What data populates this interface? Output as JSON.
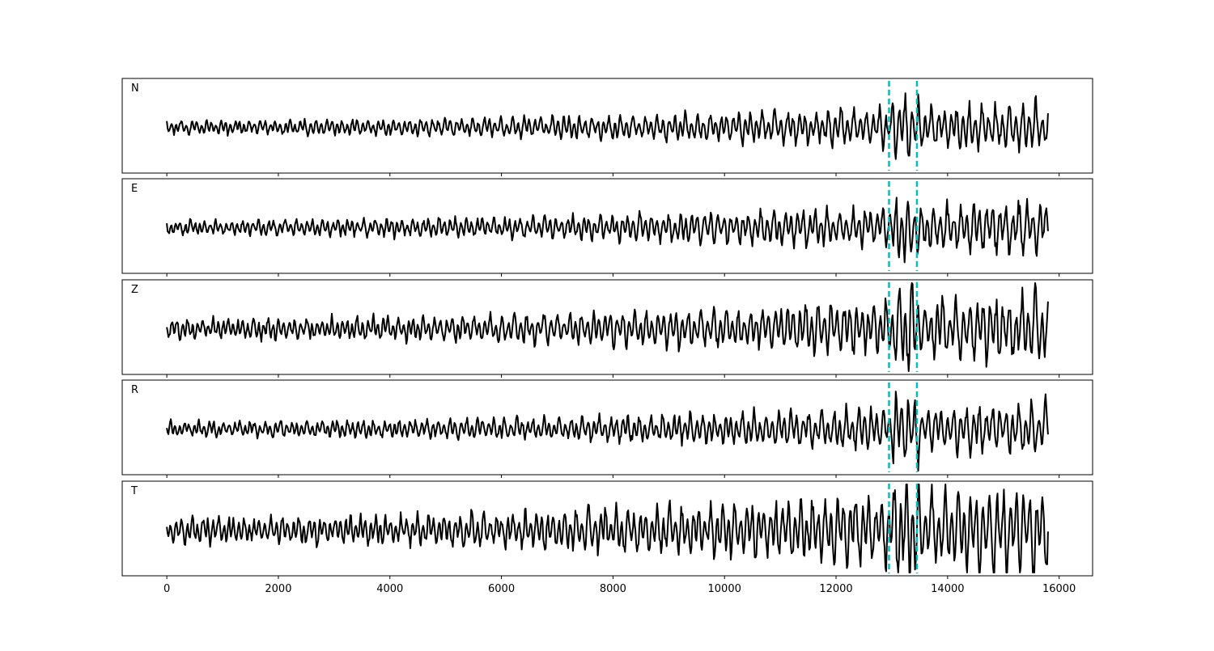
{
  "chart_data": {
    "type": "line",
    "panels": [
      {
        "name": "N",
        "amplitude": 0.38,
        "seed": 11
      },
      {
        "name": "E",
        "amplitude": 0.42,
        "seed": 23
      },
      {
        "name": "Z",
        "amplitude": 0.55,
        "seed": 37
      },
      {
        "name": "R",
        "amplitude": 0.42,
        "seed": 51
      },
      {
        "name": "T",
        "amplitude": 0.7,
        "seed": 67
      }
    ],
    "x_range": [
      0,
      15800
    ],
    "xlim": [
      -800,
      16600
    ],
    "x_ticks": [
      0,
      2000,
      4000,
      6000,
      8000,
      10000,
      12000,
      14000,
      16000
    ],
    "x_tick_labels": [
      "0",
      "2000",
      "4000",
      "6000",
      "8000",
      "10000",
      "12000",
      "14000",
      "16000"
    ],
    "markers": [
      12950,
      13450
    ],
    "line_color": "#000000",
    "marker_color": "#00bfbf",
    "grid": false,
    "xlabel": "",
    "ylabel": ""
  }
}
